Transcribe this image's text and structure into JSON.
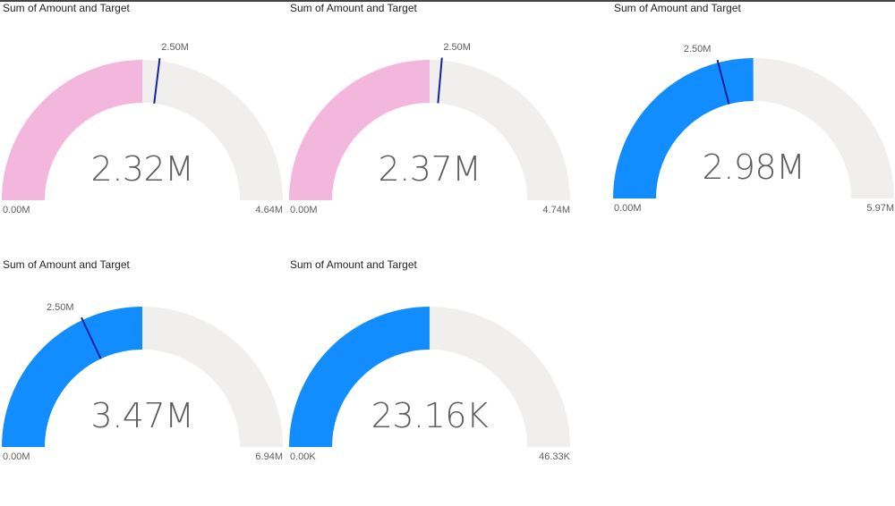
{
  "colors": {
    "track": "#f0efee",
    "pink": "#f3b6dd",
    "blue": "#118dff",
    "target": "#12239e"
  },
  "chart_data": [
    {
      "type": "gauge",
      "title": "Sum of Amount and Target",
      "value": 2.32,
      "value_label": "2.32M",
      "min": 0,
      "max": 4.64,
      "min_label": "0.00M",
      "max_label": "4.64M",
      "target": 2.5,
      "target_label": "2.50M",
      "fill": "pink"
    },
    {
      "type": "gauge",
      "title": "Sum of Amount and Target",
      "value": 2.37,
      "value_label": "2.37M",
      "min": 0,
      "max": 4.74,
      "min_label": "0.00M",
      "max_label": "4.74M",
      "target": 2.5,
      "target_label": "2.50M",
      "fill": "pink"
    },
    {
      "type": "gauge",
      "title": "Sum of Amount and Target",
      "value": 2.98,
      "value_label": "2.98M",
      "min": 0,
      "max": 5.97,
      "min_label": "0.00M",
      "max_label": "5.97M",
      "target": 2.5,
      "target_label": "2.50M",
      "fill": "blue"
    },
    {
      "type": "gauge",
      "title": "Sum of Amount and Target",
      "value": 3.47,
      "value_label": "3.47M",
      "min": 0,
      "max": 6.94,
      "min_label": "0.00M",
      "max_label": "6.94M",
      "target": 2.5,
      "target_label": "2.50M",
      "fill": "blue"
    },
    {
      "type": "gauge",
      "title": "Sum of Amount and Target",
      "value": 23.16,
      "value_label": "23.16K",
      "min": 0,
      "max": 46.33,
      "min_label": "0.00K",
      "max_label": "46.33K",
      "target": null,
      "target_label": "",
      "fill": "blue"
    }
  ]
}
